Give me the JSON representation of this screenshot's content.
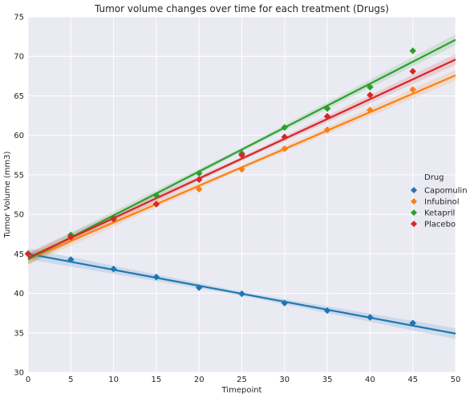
{
  "chart_data": {
    "type": "scatter",
    "title": "Tumor volume changes over time for each treatment (Drugs)",
    "xlabel": "Timepoint",
    "ylabel": "Tumor Volume (mm3)",
    "xlim": [
      0,
      50
    ],
    "ylim": [
      30,
      75
    ],
    "xticks": [
      0,
      5,
      10,
      15,
      20,
      25,
      30,
      35,
      40,
      45,
      50
    ],
    "yticks": [
      30,
      35,
      40,
      45,
      50,
      55,
      60,
      65,
      70,
      75
    ],
    "grid": true,
    "legend_title": "Drug",
    "legend_position": "right",
    "regression_lines": true,
    "x": [
      0,
      5,
      10,
      15,
      20,
      25,
      30,
      35,
      40,
      45
    ],
    "series": [
      {
        "name": "Capomulin",
        "color": "#1f77b4",
        "values": [
          45.0,
          44.27,
          43.08,
          42.06,
          40.72,
          39.94,
          38.77,
          37.82,
          36.96,
          36.24
        ],
        "fit": [
          45.0,
          34.9
        ]
      },
      {
        "name": "Infubinol",
        "color": "#ff7f0e",
        "values": [
          45.0,
          47.06,
          49.4,
          51.3,
          53.2,
          55.7,
          58.3,
          60.7,
          63.2,
          65.8
        ],
        "fit": [
          44.3,
          67.6
        ]
      },
      {
        "name": "Ketapril",
        "color": "#2ca02c",
        "values": [
          45.0,
          47.39,
          49.58,
          52.4,
          55.2,
          57.7,
          61.0,
          63.4,
          66.1,
          70.7
        ],
        "fit": [
          44.3,
          72.1
        ]
      },
      {
        "name": "Placebo",
        "color": "#d62728",
        "values": [
          45.0,
          47.13,
          49.4,
          51.3,
          54.4,
          57.5,
          59.8,
          62.4,
          65.1,
          68.1
        ],
        "fit": [
          44.5,
          69.6
        ]
      }
    ]
  }
}
